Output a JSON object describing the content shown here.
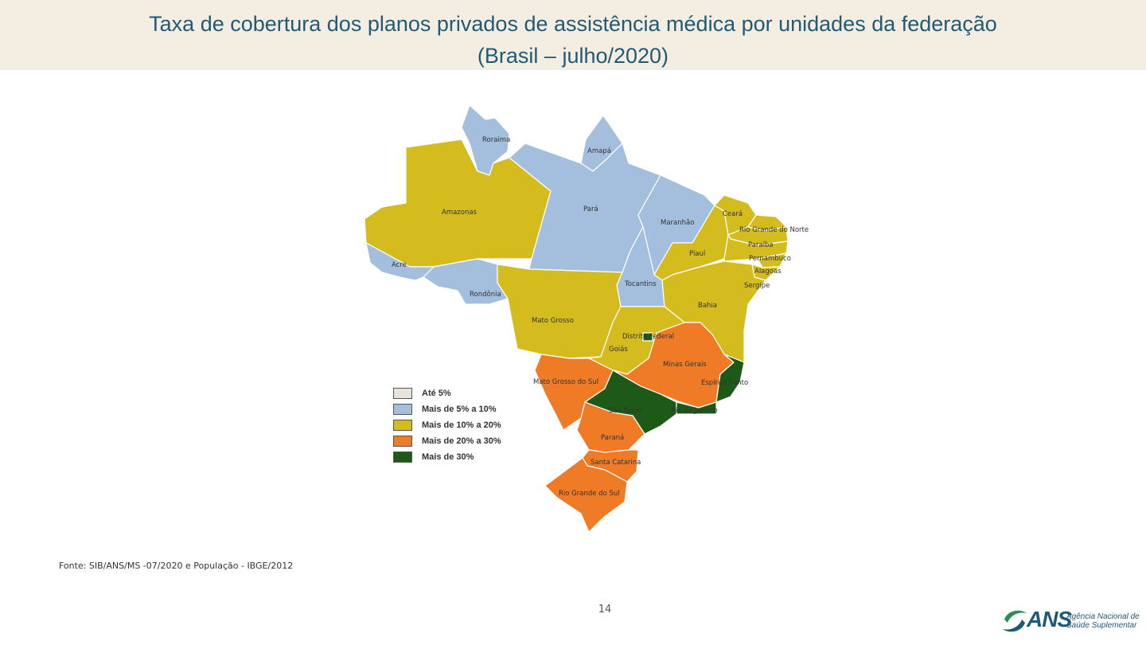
{
  "header": {
    "title_line1": "Taxa de cobertura dos planos privados de assistência médica por unidades da federação",
    "title_line2": "(Brasil – julho/2020)"
  },
  "colors": {
    "title": "#1f5a77",
    "title_bg": "#f4eee2",
    "ate5": "#e8e4dc",
    "c5_10": "#a3bfdd",
    "c10_20": "#d4bc1f",
    "c20_30": "#f07b26",
    "c30": "#1e5a17"
  },
  "legend": [
    {
      "label": "Até 5%",
      "class": "ate5"
    },
    {
      "label": "Mais de 5% a 10%",
      "class": "c5_10"
    },
    {
      "label": "Mais de 10% a 20%",
      "class": "c10_20"
    },
    {
      "label": "Mais de 20% a 30%",
      "class": "c20_30"
    },
    {
      "label": "Mais de 30%",
      "class": "c30"
    }
  ],
  "states": {
    "roraima": {
      "name": "Roraima",
      "class": "c5_10"
    },
    "amapa": {
      "name": "Amapá",
      "class": "c5_10"
    },
    "amazonas": {
      "name": "Amazonas",
      "class": "c10_20"
    },
    "para": {
      "name": "Pará",
      "class": "c5_10"
    },
    "maranhao": {
      "name": "Maranhão",
      "class": "c5_10"
    },
    "ceara": {
      "name": "Ceará",
      "class": "c10_20"
    },
    "rn": {
      "name": "Rio Grande do Norte",
      "class": "c10_20"
    },
    "paraiba": {
      "name": "Paraíba",
      "class": "c10_20"
    },
    "pernambuco": {
      "name": "Pernambuco",
      "class": "c10_20"
    },
    "alagoas": {
      "name": "Alagoas",
      "class": "c10_20"
    },
    "sergipe": {
      "name": "Sergipe",
      "class": "c10_20"
    },
    "piaui": {
      "name": "Piauí",
      "class": "c10_20"
    },
    "acre": {
      "name": "Acre",
      "class": "c5_10"
    },
    "rondonia": {
      "name": "Rondônia",
      "class": "c5_10"
    },
    "tocantins": {
      "name": "Tocantins",
      "class": "c5_10"
    },
    "bahia": {
      "name": "Bahia",
      "class": "c10_20"
    },
    "mt": {
      "name": "Mato Grosso",
      "class": "c10_20"
    },
    "df": {
      "name": "Distrito Federal",
      "class": "c30"
    },
    "goias": {
      "name": "Goiás",
      "class": "c10_20"
    },
    "mg": {
      "name": "Minas Gerais",
      "class": "c20_30"
    },
    "ms": {
      "name": "Mato Grosso do Sul",
      "class": "c20_30"
    },
    "es": {
      "name": "Espírito Santo",
      "class": "c30"
    },
    "sp": {
      "name": "São Paulo",
      "class": "c30"
    },
    "rj": {
      "name": "Rio de Janeiro",
      "class": "c30"
    },
    "pr": {
      "name": "Paraná",
      "class": "c20_30"
    },
    "sc": {
      "name": "Santa Catarina",
      "class": "c20_30"
    },
    "rs": {
      "name": "Rio Grande do Sul",
      "class": "c20_30"
    }
  },
  "footer": {
    "source": "Fonte: SIB/ANS/MS -07/2020 e População - IBGE/2012",
    "page_number": "14"
  },
  "logo": {
    "name": "ANS",
    "subtitle_line1": "Agência Nacional de",
    "subtitle_line2": "Saúde Suplementar"
  }
}
